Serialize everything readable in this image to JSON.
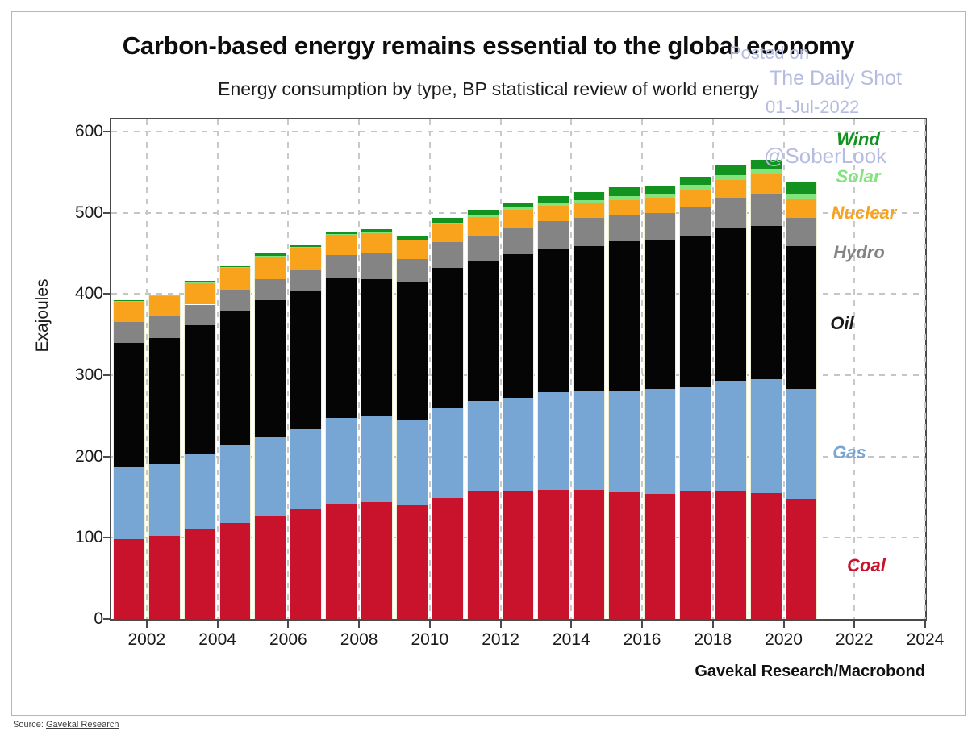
{
  "watermark": {
    "line1": "Posted on",
    "line2": "The Daily Shot",
    "line3": "01-Jul-2022",
    "line4": "@SoberLook"
  },
  "source_line": {
    "prefix": "Source:",
    "link": "Gavekal Research"
  },
  "chart_data": {
    "type": "bar",
    "stacked": true,
    "title": "Carbon-based energy remains essential to the global economy",
    "subtitle": "Energy consumption by type, BP statistical review of world energy",
    "ylabel": "Exajoules",
    "attribution": "Gavekal Research/Macrobond",
    "x": [
      2001,
      2002,
      2003,
      2004,
      2005,
      2006,
      2007,
      2008,
      2009,
      2010,
      2011,
      2012,
      2013,
      2014,
      2015,
      2016,
      2017,
      2018,
      2019,
      2020
    ],
    "x_axis_range": [
      2001,
      2024
    ],
    "ylim": [
      0,
      615
    ],
    "y_ticks": [
      0,
      100,
      200,
      300,
      400,
      500,
      600
    ],
    "x_ticks": [
      2002,
      2004,
      2006,
      2008,
      2010,
      2012,
      2014,
      2016,
      2018,
      2020,
      2022,
      2024
    ],
    "grid": true,
    "legend_position": "right-inside",
    "series": [
      {
        "name": "Coal",
        "color": "#c9122b",
        "values": [
          98,
          102,
          110,
          118,
          127,
          135,
          141,
          144,
          140,
          149,
          157,
          158,
          159,
          159,
          156,
          154,
          157,
          157,
          155,
          148
        ]
      },
      {
        "name": "Gas",
        "color": "#78a6d4",
        "values": [
          89,
          89,
          94,
          96,
          98,
          99,
          106,
          106,
          104,
          111,
          111,
          114,
          120,
          122,
          125,
          129,
          129,
          136,
          140,
          135
        ]
      },
      {
        "name": "Oil",
        "color": "#050505",
        "values": [
          153,
          155,
          158,
          166,
          167,
          169,
          172,
          168,
          170,
          172,
          173,
          177,
          177,
          178,
          184,
          184,
          186,
          189,
          189,
          176
        ]
      },
      {
        "name": "Hydro",
        "color": "#848484",
        "values": [
          26,
          27,
          25,
          25,
          26,
          26,
          29,
          33,
          29,
          32,
          30,
          33,
          34,
          35,
          33,
          33,
          36,
          37,
          39,
          35
        ]
      },
      {
        "name": "Nuclear",
        "color": "#f9a21c",
        "values": [
          25,
          25,
          27,
          28,
          29,
          28,
          25,
          24,
          23,
          23,
          24,
          22,
          19,
          18,
          18,
          19,
          21,
          22,
          24,
          24
        ]
      },
      {
        "name": "Solar",
        "color": "#83e47e",
        "values": [
          0.3,
          0.4,
          0.4,
          0.5,
          0.5,
          0.6,
          0.7,
          0.8,
          1.0,
          1.2,
          2.0,
          2.5,
          3.0,
          4.0,
          5.0,
          5.0,
          6.0,
          5.0,
          6.0,
          6.0
        ]
      },
      {
        "name": "Wind",
        "color": "#12921f",
        "values": [
          1.2,
          1.5,
          1.8,
          2.0,
          2.5,
          3.0,
          3.5,
          4.5,
          5.0,
          5.5,
          7.0,
          6.5,
          9.0,
          10.0,
          11.0,
          9.0,
          9.0,
          13.0,
          12.0,
          14.0
        ]
      }
    ],
    "legend_labels": [
      {
        "text": "Wind",
        "color": "#12921f"
      },
      {
        "text": "Solar",
        "color": "#83e47e"
      },
      {
        "text": "Nuclear",
        "color": "#f9a21c"
      },
      {
        "text": "Hydro",
        "color": "#848484"
      },
      {
        "text": "Oil",
        "color": "#1a1a1a"
      },
      {
        "text": "Gas",
        "color": "#78a6d4"
      },
      {
        "text": "Coal",
        "color": "#c9122b"
      }
    ]
  }
}
